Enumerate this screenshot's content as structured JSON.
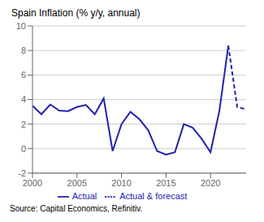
{
  "chart_data": {
    "type": "line",
    "title": "Spain Inflation (% y/y, annual)",
    "source": "Source: Capital Economics, Refinitiv.",
    "x": [
      2000,
      2001,
      2002,
      2003,
      2004,
      2005,
      2006,
      2007,
      2008,
      2009,
      2010,
      2011,
      2012,
      2013,
      2014,
      2015,
      2016,
      2017,
      2018,
      2019,
      2020,
      2021,
      2022,
      2023,
      2024
    ],
    "series": [
      {
        "name": "Actual",
        "color": "#2222aa",
        "line_style": "solid",
        "values": [
          3.5,
          2.8,
          3.6,
          3.1,
          3.05,
          3.4,
          3.56,
          2.8,
          4.1,
          -0.2,
          2.0,
          3.0,
          2.4,
          1.5,
          -0.2,
          -0.5,
          -0.3,
          2.0,
          1.7,
          0.8,
          -0.3,
          3.1,
          8.4,
          null,
          null
        ]
      },
      {
        "name": "Actual & forecast",
        "color": "#2222aa",
        "line_style": "dashed",
        "values": [
          null,
          null,
          null,
          null,
          null,
          null,
          null,
          null,
          null,
          null,
          null,
          null,
          null,
          null,
          null,
          null,
          null,
          null,
          null,
          null,
          null,
          null,
          8.4,
          3.4,
          3.2
        ]
      }
    ],
    "xlim": [
      2000,
      2024
    ],
    "xticks": [
      2000,
      2005,
      2010,
      2015,
      2020
    ],
    "ylim": [
      -2,
      10
    ],
    "yticks": [
      -2,
      0,
      2,
      4,
      6,
      8,
      10
    ],
    "grid": true,
    "legend": "bottom"
  }
}
